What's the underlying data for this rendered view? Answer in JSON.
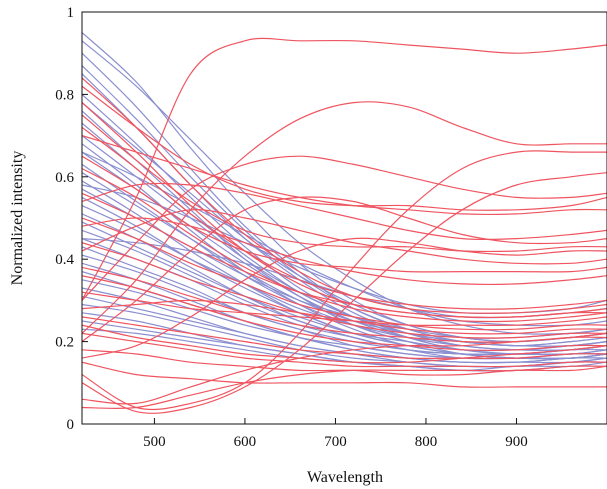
{
  "chart_data": {
    "type": "line",
    "title": "",
    "xlabel": "Wavelength",
    "ylabel": "Normalized intensity",
    "xlim": [
      420,
      1000
    ],
    "ylim": [
      0,
      1
    ],
    "x_ticks": [
      500,
      600,
      700,
      800,
      900
    ],
    "y_ticks": [
      0,
      0.2,
      0.4,
      0.6,
      0.8,
      1
    ],
    "y_tick_labels": [
      "0",
      "0.2",
      "0.4",
      "0.6",
      "0.8",
      "1"
    ],
    "grid": false,
    "colors": {
      "blue": "#8b8fd0",
      "red": "#ef5560"
    },
    "x": [
      420,
      480,
      540,
      600,
      660,
      720,
      780,
      840,
      900,
      960,
      1000
    ],
    "series": [
      {
        "color": "blue",
        "values": [
          0.95,
          0.83,
          0.67,
          0.52,
          0.39,
          0.3,
          0.24,
          0.21,
          0.2,
          0.21,
          0.22
        ]
      },
      {
        "color": "blue",
        "values": [
          0.93,
          0.82,
          0.69,
          0.56,
          0.44,
          0.35,
          0.28,
          0.24,
          0.22,
          0.22,
          0.23
        ]
      },
      {
        "color": "blue",
        "values": [
          0.9,
          0.77,
          0.62,
          0.48,
          0.37,
          0.28,
          0.23,
          0.2,
          0.19,
          0.19,
          0.2
        ]
      },
      {
        "color": "blue",
        "values": [
          0.87,
          0.74,
          0.6,
          0.47,
          0.36,
          0.28,
          0.23,
          0.2,
          0.19,
          0.19,
          0.2
        ]
      },
      {
        "color": "blue",
        "values": [
          0.85,
          0.72,
          0.58,
          0.45,
          0.35,
          0.27,
          0.22,
          0.19,
          0.18,
          0.18,
          0.19
        ]
      },
      {
        "color": "blue",
        "values": [
          0.8,
          0.68,
          0.55,
          0.43,
          0.33,
          0.26,
          0.21,
          0.18,
          0.17,
          0.18,
          0.18
        ]
      },
      {
        "color": "blue",
        "values": [
          0.78,
          0.67,
          0.56,
          0.45,
          0.36,
          0.29,
          0.24,
          0.21,
          0.2,
          0.21,
          0.22
        ]
      },
      {
        "color": "blue",
        "values": [
          0.76,
          0.64,
          0.52,
          0.4,
          0.31,
          0.24,
          0.2,
          0.17,
          0.16,
          0.16,
          0.17
        ]
      },
      {
        "color": "blue",
        "values": [
          0.73,
          0.62,
          0.51,
          0.41,
          0.32,
          0.26,
          0.22,
          0.19,
          0.18,
          0.18,
          0.19
        ]
      },
      {
        "color": "blue",
        "values": [
          0.7,
          0.6,
          0.5,
          0.4,
          0.32,
          0.26,
          0.22,
          0.2,
          0.19,
          0.2,
          0.21
        ]
      },
      {
        "color": "blue",
        "values": [
          0.68,
          0.58,
          0.47,
          0.37,
          0.29,
          0.23,
          0.19,
          0.17,
          0.16,
          0.16,
          0.17
        ]
      },
      {
        "color": "blue",
        "values": [
          0.66,
          0.57,
          0.48,
          0.39,
          0.31,
          0.25,
          0.21,
          0.19,
          0.18,
          0.19,
          0.2
        ]
      },
      {
        "color": "blue",
        "values": [
          0.63,
          0.54,
          0.45,
          0.36,
          0.29,
          0.24,
          0.2,
          0.18,
          0.17,
          0.17,
          0.18
        ]
      },
      {
        "color": "blue",
        "values": [
          0.61,
          0.53,
          0.45,
          0.37,
          0.3,
          0.25,
          0.22,
          0.2,
          0.2,
          0.21,
          0.22
        ]
      },
      {
        "color": "blue",
        "values": [
          0.59,
          0.51,
          0.42,
          0.34,
          0.27,
          0.22,
          0.19,
          0.17,
          0.16,
          0.17,
          0.17
        ]
      },
      {
        "color": "blue",
        "values": [
          0.57,
          0.5,
          0.43,
          0.36,
          0.3,
          0.26,
          0.23,
          0.21,
          0.21,
          0.22,
          0.23
        ]
      },
      {
        "color": "blue",
        "values": [
          0.55,
          0.48,
          0.4,
          0.33,
          0.27,
          0.22,
          0.19,
          0.17,
          0.17,
          0.17,
          0.18
        ]
      },
      {
        "color": "blue",
        "values": [
          0.53,
          0.47,
          0.4,
          0.34,
          0.28,
          0.24,
          0.21,
          0.2,
          0.19,
          0.2,
          0.21
        ]
      },
      {
        "color": "blue",
        "values": [
          0.51,
          0.45,
          0.38,
          0.31,
          0.25,
          0.21,
          0.18,
          0.16,
          0.16,
          0.16,
          0.17
        ]
      },
      {
        "color": "blue",
        "values": [
          0.49,
          0.43,
          0.37,
          0.31,
          0.26,
          0.22,
          0.2,
          0.18,
          0.18,
          0.19,
          0.2
        ]
      },
      {
        "color": "blue",
        "values": [
          0.47,
          0.42,
          0.36,
          0.3,
          0.25,
          0.21,
          0.18,
          0.17,
          0.17,
          0.17,
          0.18
        ]
      },
      {
        "color": "blue",
        "values": [
          0.45,
          0.4,
          0.35,
          0.29,
          0.24,
          0.21,
          0.18,
          0.17,
          0.17,
          0.18,
          0.19
        ]
      },
      {
        "color": "blue",
        "values": [
          0.43,
          0.38,
          0.33,
          0.27,
          0.23,
          0.19,
          0.17,
          0.16,
          0.16,
          0.16,
          0.17
        ]
      },
      {
        "color": "blue",
        "values": [
          0.41,
          0.37,
          0.32,
          0.27,
          0.23,
          0.2,
          0.18,
          0.17,
          0.17,
          0.18,
          0.19
        ]
      },
      {
        "color": "blue",
        "values": [
          0.39,
          0.35,
          0.3,
          0.25,
          0.21,
          0.18,
          0.16,
          0.15,
          0.15,
          0.15,
          0.16
        ]
      },
      {
        "color": "blue",
        "values": [
          0.37,
          0.33,
          0.29,
          0.25,
          0.21,
          0.19,
          0.17,
          0.16,
          0.16,
          0.17,
          0.17
        ]
      },
      {
        "color": "blue",
        "values": [
          0.35,
          0.32,
          0.28,
          0.24,
          0.21,
          0.18,
          0.16,
          0.15,
          0.15,
          0.16,
          0.16
        ]
      },
      {
        "color": "blue",
        "values": [
          0.33,
          0.3,
          0.26,
          0.22,
          0.19,
          0.17,
          0.15,
          0.14,
          0.14,
          0.15,
          0.15
        ]
      },
      {
        "color": "blue",
        "values": [
          0.31,
          0.28,
          0.25,
          0.22,
          0.19,
          0.17,
          0.16,
          0.15,
          0.15,
          0.16,
          0.16
        ]
      },
      {
        "color": "blue",
        "values": [
          0.29,
          0.27,
          0.24,
          0.21,
          0.18,
          0.16,
          0.15,
          0.14,
          0.14,
          0.15,
          0.16
        ]
      },
      {
        "color": "blue",
        "values": [
          0.27,
          0.25,
          0.22,
          0.19,
          0.17,
          0.15,
          0.14,
          0.13,
          0.13,
          0.14,
          0.14
        ]
      },
      {
        "color": "blue",
        "values": [
          0.25,
          0.23,
          0.21,
          0.19,
          0.17,
          0.15,
          0.14,
          0.14,
          0.14,
          0.15,
          0.15
        ]
      },
      {
        "color": "blue",
        "values": [
          0.23,
          0.22,
          0.2,
          0.18,
          0.16,
          0.15,
          0.14,
          0.13,
          0.14,
          0.14,
          0.15
        ]
      },
      {
        "color": "blue",
        "values": [
          0.66,
          0.6,
          0.53,
          0.46,
          0.39,
          0.33,
          0.28,
          0.25,
          0.24,
          0.24,
          0.25
        ]
      },
      {
        "color": "blue",
        "values": [
          0.58,
          0.55,
          0.5,
          0.44,
          0.38,
          0.33,
          0.29,
          0.27,
          0.27,
          0.28,
          0.3
        ]
      },
      {
        "color": "blue",
        "values": [
          0.45,
          0.44,
          0.42,
          0.39,
          0.35,
          0.31,
          0.28,
          0.26,
          0.26,
          0.27,
          0.28
        ]
      },
      {
        "color": "red",
        "values": [
          0.3,
          0.55,
          0.85,
          0.93,
          0.93,
          0.93,
          0.92,
          0.91,
          0.9,
          0.91,
          0.92
        ]
      },
      {
        "color": "red",
        "values": [
          0.22,
          0.35,
          0.52,
          0.65,
          0.74,
          0.78,
          0.77,
          0.72,
          0.68,
          0.68,
          0.68
        ]
      },
      {
        "color": "red",
        "values": [
          0.12,
          0.04,
          0.05,
          0.1,
          0.22,
          0.38,
          0.52,
          0.62,
          0.66,
          0.66,
          0.66
        ]
      },
      {
        "color": "red",
        "values": [
          0.1,
          0.03,
          0.04,
          0.09,
          0.18,
          0.3,
          0.42,
          0.52,
          0.58,
          0.6,
          0.61
        ]
      },
      {
        "color": "red",
        "values": [
          0.3,
          0.44,
          0.57,
          0.63,
          0.65,
          0.63,
          0.6,
          0.57,
          0.55,
          0.55,
          0.56
        ]
      },
      {
        "color": "red",
        "values": [
          0.82,
          0.72,
          0.63,
          0.57,
          0.54,
          0.53,
          0.53,
          0.52,
          0.52,
          0.53,
          0.55
        ]
      },
      {
        "color": "red",
        "values": [
          0.7,
          0.66,
          0.62,
          0.58,
          0.55,
          0.53,
          0.52,
          0.51,
          0.51,
          0.52,
          0.52
        ]
      },
      {
        "color": "red",
        "values": [
          0.2,
          0.3,
          0.42,
          0.52,
          0.55,
          0.54,
          0.5,
          0.46,
          0.44,
          0.44,
          0.45
        ]
      },
      {
        "color": "red",
        "values": [
          0.75,
          0.64,
          0.54,
          0.47,
          0.44,
          0.43,
          0.43,
          0.42,
          0.42,
          0.43,
          0.43
        ]
      },
      {
        "color": "red",
        "values": [
          0.16,
          0.19,
          0.26,
          0.35,
          0.42,
          0.45,
          0.44,
          0.42,
          0.41,
          0.42,
          0.42
        ]
      },
      {
        "color": "red",
        "values": [
          0.42,
          0.48,
          0.52,
          0.5,
          0.47,
          0.44,
          0.42,
          0.4,
          0.39,
          0.39,
          0.4
        ]
      },
      {
        "color": "red",
        "values": [
          0.65,
          0.57,
          0.48,
          0.42,
          0.39,
          0.38,
          0.37,
          0.37,
          0.37,
          0.37,
          0.38
        ]
      },
      {
        "color": "red",
        "values": [
          0.84,
          0.72,
          0.58,
          0.46,
          0.37,
          0.31,
          0.28,
          0.27,
          0.27,
          0.28,
          0.29
        ]
      },
      {
        "color": "red",
        "values": [
          0.78,
          0.66,
          0.53,
          0.42,
          0.34,
          0.29,
          0.27,
          0.26,
          0.26,
          0.27,
          0.28
        ]
      },
      {
        "color": "red",
        "values": [
          0.72,
          0.62,
          0.51,
          0.42,
          0.35,
          0.31,
          0.29,
          0.28,
          0.28,
          0.29,
          0.3
        ]
      },
      {
        "color": "red",
        "values": [
          0.62,
          0.55,
          0.46,
          0.38,
          0.32,
          0.28,
          0.26,
          0.25,
          0.25,
          0.26,
          0.27
        ]
      },
      {
        "color": "red",
        "values": [
          0.56,
          0.5,
          0.43,
          0.37,
          0.32,
          0.29,
          0.27,
          0.26,
          0.26,
          0.27,
          0.27
        ]
      },
      {
        "color": "red",
        "values": [
          0.5,
          0.45,
          0.39,
          0.34,
          0.29,
          0.26,
          0.24,
          0.23,
          0.23,
          0.24,
          0.24
        ]
      },
      {
        "color": "red",
        "values": [
          0.44,
          0.4,
          0.35,
          0.31,
          0.27,
          0.24,
          0.22,
          0.21,
          0.21,
          0.22,
          0.22
        ]
      },
      {
        "color": "red",
        "values": [
          0.38,
          0.35,
          0.31,
          0.27,
          0.24,
          0.22,
          0.21,
          0.2,
          0.2,
          0.21,
          0.21
        ]
      },
      {
        "color": "red",
        "values": [
          0.32,
          0.3,
          0.28,
          0.27,
          0.26,
          0.25,
          0.24,
          0.24,
          0.24,
          0.25,
          0.26
        ]
      },
      {
        "color": "red",
        "values": [
          0.28,
          0.29,
          0.3,
          0.29,
          0.27,
          0.25,
          0.23,
          0.22,
          0.22,
          0.23,
          0.23
        ]
      },
      {
        "color": "red",
        "values": [
          0.26,
          0.24,
          0.22,
          0.2,
          0.18,
          0.17,
          0.16,
          0.16,
          0.16,
          0.17,
          0.17
        ]
      },
      {
        "color": "red",
        "values": [
          0.22,
          0.2,
          0.18,
          0.16,
          0.15,
          0.14,
          0.14,
          0.14,
          0.14,
          0.15,
          0.15
        ]
      },
      {
        "color": "red",
        "values": [
          0.18,
          0.17,
          0.15,
          0.14,
          0.13,
          0.13,
          0.12,
          0.12,
          0.13,
          0.13,
          0.14
        ]
      },
      {
        "color": "red",
        "values": [
          0.06,
          0.05,
          0.09,
          0.13,
          0.16,
          0.18,
          0.19,
          0.19,
          0.2,
          0.21,
          0.22
        ]
      },
      {
        "color": "red",
        "values": [
          0.04,
          0.04,
          0.07,
          0.1,
          0.12,
          0.13,
          0.13,
          0.13,
          0.13,
          0.14,
          0.14
        ]
      },
      {
        "color": "red",
        "values": [
          0.15,
          0.12,
          0.11,
          0.1,
          0.1,
          0.1,
          0.1,
          0.09,
          0.09,
          0.09,
          0.09
        ]
      },
      {
        "color": "red",
        "values": [
          0.48,
          0.5,
          0.48,
          0.44,
          0.4,
          0.37,
          0.35,
          0.34,
          0.34,
          0.35,
          0.36
        ]
      },
      {
        "color": "red",
        "values": [
          0.54,
          0.58,
          0.58,
          0.56,
          0.53,
          0.5,
          0.47,
          0.45,
          0.45,
          0.46,
          0.47
        ]
      },
      {
        "color": "red",
        "values": [
          0.36,
          0.33,
          0.29,
          0.25,
          0.22,
          0.2,
          0.19,
          0.18,
          0.18,
          0.19,
          0.19
        ]
      },
      {
        "color": "red",
        "values": [
          0.24,
          0.21,
          0.19,
          0.17,
          0.16,
          0.15,
          0.15,
          0.16,
          0.17,
          0.18,
          0.19
        ]
      }
    ]
  }
}
